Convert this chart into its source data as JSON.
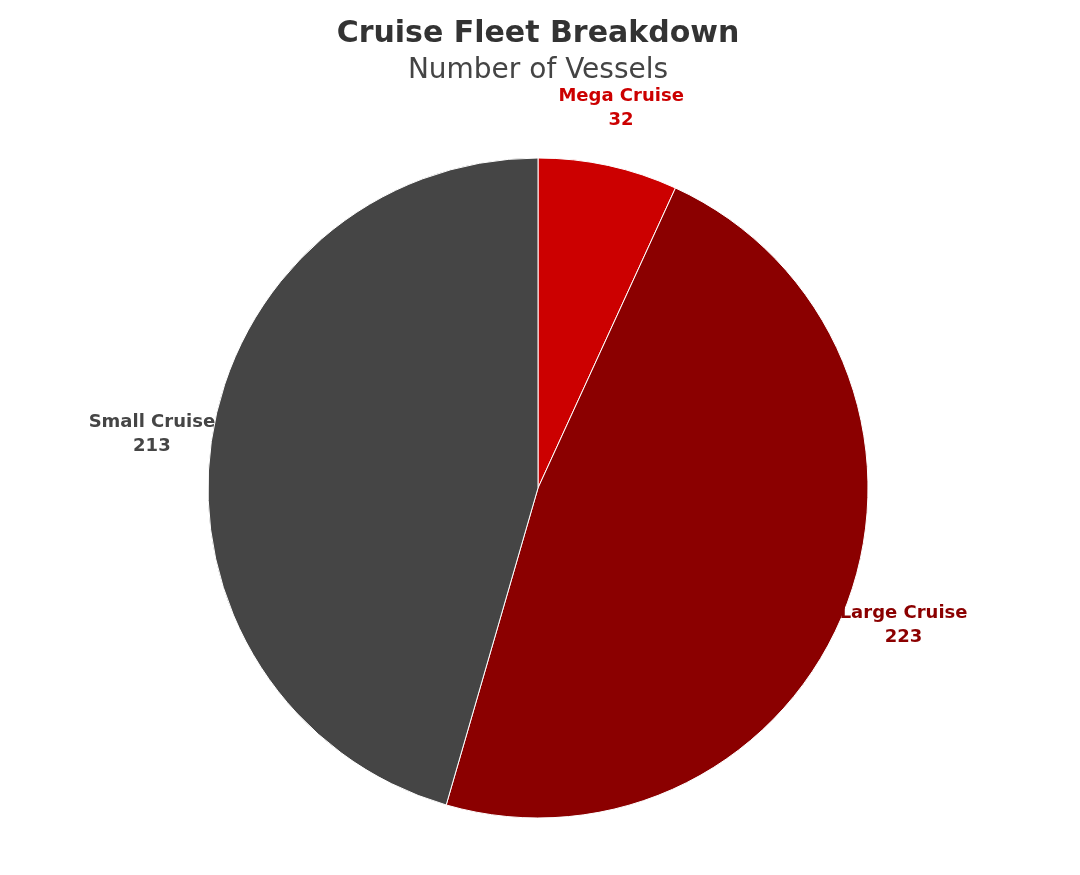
{
  "chart_data": {
    "type": "pie",
    "title": "Cruise Fleet Breakdown",
    "subtitle": "Number of Vessels",
    "categories": [
      "Mega Cruise",
      "Large Cruise",
      "Small Cruise"
    ],
    "values": [
      32,
      223,
      213
    ],
    "colors": [
      "#cc0000",
      "#8b0000",
      "#454545"
    ],
    "data_labels": true
  }
}
